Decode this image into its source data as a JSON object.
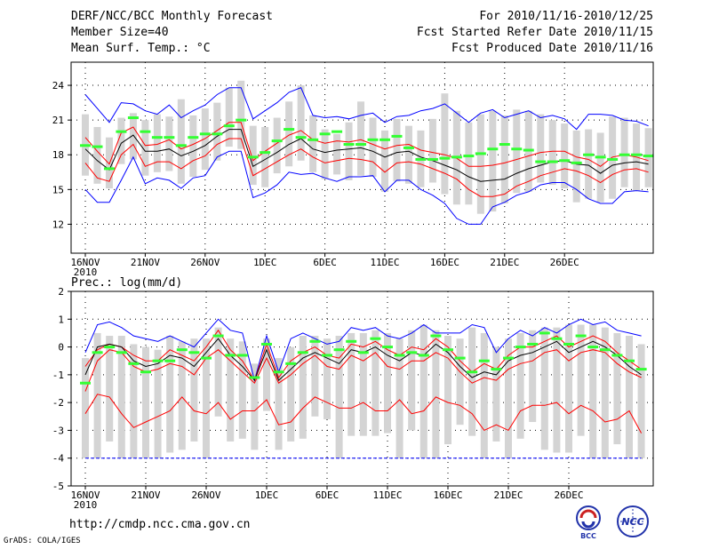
{
  "header": {
    "title": "DERF/NCC/BCC Monthly Forecast",
    "member_size": "Member Size=40",
    "variable": "Mean Surf. Temp.: °C",
    "period": "For 2010/11/16-2010/12/25",
    "fcst_started": "Fcst Started Refer Date 2010/11/15",
    "fcst_produced": "Fcst Produced Date 2010/11/16"
  },
  "footer": {
    "url": "http://cmdp.ncc.cma.gov.cn",
    "grads": "GrADS: COLA/IGES",
    "logo_bcc": "BCC",
    "logo_ncc": "NCC"
  },
  "colors": {
    "mean": "#000000",
    "spread": "#ff0000",
    "extreme": "#0000ff",
    "obs_bar": "#33ff33",
    "box": "#d4d4d4"
  },
  "chart_data": [
    {
      "type": "line",
      "title": "Mean Surf. Temp.: °C",
      "xlabel": "",
      "ylabel": "",
      "ylim": [
        9.5,
        26
      ],
      "yticks": [
        12,
        15,
        18,
        21,
        24
      ],
      "x_tick_labels": [
        "16NOV",
        "21NOV",
        "26NOV",
        "1DEC",
        "6DEC",
        "11DEC",
        "16DEC",
        "21DEC",
        "26DEC"
      ],
      "x_year_label": "2010",
      "grid": true,
      "series": [
        {
          "name": "ensemble max",
          "color_key": "extreme",
          "values": [
            23.2,
            22.0,
            20.8,
            22.5,
            22.4,
            21.8,
            21.5,
            22.3,
            21.2,
            21.8,
            22.3,
            23.2,
            23.8,
            23.8,
            21.1,
            21.8,
            22.5,
            23.4,
            23.8,
            21.4,
            21.2,
            21.3,
            21.1,
            21.4,
            21.6,
            20.8,
            21.3,
            21.4,
            21.8,
            22.0,
            22.4,
            21.6,
            20.8,
            21.6,
            21.9,
            21.2,
            21.5,
            21.8,
            21.2,
            21.4,
            21.1,
            20.2,
            21.5,
            21.5,
            21.4,
            21.0,
            20.9,
            20.5
          ]
        },
        {
          "name": "mean + sd",
          "color_key": "spread",
          "values": [
            19.5,
            18.3,
            17.2,
            19.9,
            20.4,
            18.8,
            18.9,
            19.3,
            18.5,
            18.9,
            19.4,
            20.1,
            20.8,
            20.8,
            17.5,
            18.3,
            19.0,
            19.7,
            20.1,
            19.3,
            19.0,
            19.2,
            19.1,
            19.3,
            18.9,
            18.5,
            18.8,
            18.9,
            18.4,
            18.2,
            18.0,
            17.7,
            17.0,
            17.0,
            17.1,
            17.3,
            17.6,
            17.9,
            18.2,
            18.3,
            18.3,
            17.8,
            17.6,
            17.0,
            17.8,
            18.0,
            17.8,
            17.5
          ]
        },
        {
          "name": "ensemble mean",
          "color_key": "mean",
          "values": [
            18.5,
            17.5,
            16.7,
            19.0,
            19.7,
            18.3,
            18.3,
            18.5,
            17.9,
            18.3,
            18.8,
            19.6,
            20.2,
            20.2,
            17.0,
            17.6,
            18.2,
            18.9,
            19.4,
            18.5,
            18.2,
            18.4,
            18.5,
            18.6,
            18.3,
            17.8,
            18.2,
            18.3,
            17.8,
            17.5,
            17.1,
            16.7,
            16.1,
            15.7,
            15.8,
            15.9,
            16.4,
            16.8,
            17.1,
            17.4,
            17.5,
            17.2,
            17.1,
            16.4,
            17.1,
            17.3,
            17.4,
            17.2
          ]
        },
        {
          "name": "mean - sd",
          "color_key": "spread",
          "values": [
            17.3,
            16.0,
            15.7,
            18.0,
            18.9,
            17.0,
            17.4,
            17.4,
            16.8,
            17.5,
            17.9,
            18.9,
            19.4,
            19.4,
            16.2,
            16.8,
            17.4,
            18.0,
            18.5,
            17.8,
            17.3,
            17.5,
            17.7,
            17.6,
            17.4,
            16.5,
            17.3,
            17.4,
            17.2,
            16.8,
            16.4,
            15.9,
            15.0,
            14.4,
            14.4,
            14.6,
            15.3,
            15.7,
            16.2,
            16.5,
            16.8,
            16.6,
            16.2,
            15.6,
            16.3,
            16.7,
            16.8,
            16.5
          ]
        },
        {
          "name": "ensemble min",
          "color_key": "extreme",
          "values": [
            15.0,
            13.9,
            13.9,
            15.8,
            17.8,
            15.5,
            16.0,
            15.8,
            15.1,
            16.0,
            16.2,
            17.8,
            18.3,
            18.3,
            14.3,
            14.7,
            15.4,
            16.5,
            16.3,
            16.4,
            16.0,
            15.7,
            16.1,
            16.1,
            16.2,
            14.8,
            15.8,
            15.8,
            15.0,
            14.5,
            13.8,
            12.5,
            12.0,
            12.0,
            13.5,
            13.9,
            14.5,
            14.8,
            15.4,
            15.6,
            15.6,
            15.0,
            14.2,
            13.8,
            13.8,
            14.8,
            14.9,
            14.8
          ]
        },
        {
          "name": "box top",
          "color_key": "box",
          "values": [
            21.5,
            20.4,
            19.5,
            21.2,
            21.6,
            21.0,
            21.5,
            21.3,
            22.8,
            21.4,
            22.0,
            22.5,
            23.8,
            24.4,
            20.5,
            20.4,
            21.2,
            22.6,
            24.0,
            21.4,
            20.2,
            19.8,
            20.8,
            22.6,
            21.2,
            20.1,
            21.1,
            20.5,
            20.1,
            21.1,
            23.3,
            21.8,
            20.8,
            21.5,
            21.8,
            21.4,
            21.9,
            21.8,
            21.5,
            21.0,
            20.7,
            20.1,
            20.2,
            19.9,
            21.3,
            21.2,
            20.7,
            20.3
          ]
        },
        {
          "name": "box bottom",
          "color_key": "box",
          "values": [
            16.2,
            15.5,
            15.1,
            17.2,
            17.6,
            16.2,
            16.5,
            16.6,
            15.5,
            16.1,
            16.7,
            17.5,
            18.7,
            18.5,
            15.4,
            15.2,
            16.4,
            17.0,
            17.5,
            16.5,
            15.9,
            16.3,
            15.8,
            16.2,
            16.1,
            14.8,
            15.7,
            15.5,
            15.2,
            15.6,
            14.6,
            13.7,
            13.7,
            12.9,
            13.1,
            13.8,
            14.7,
            14.8,
            15.6,
            15.4,
            15.1,
            13.9,
            14.2,
            13.9,
            14.2,
            15.2,
            14.9,
            15.2
          ]
        },
        {
          "name": "observed",
          "color_key": "obs_bar",
          "values": [
            18.8,
            18.7,
            16.8,
            20.0,
            21.2,
            20.0,
            19.5,
            19.5,
            18.8,
            19.5,
            19.8,
            19.8,
            20.5,
            21.0,
            17.8,
            18.2,
            19.2,
            20.2,
            19.5,
            19.3,
            19.8,
            20.0,
            18.9,
            18.9,
            19.3,
            19.3,
            19.6,
            18.6,
            17.6,
            17.6,
            17.7,
            17.8,
            17.9,
            18.1,
            18.5,
            18.9,
            18.5,
            18.4,
            17.4,
            17.4,
            17.5,
            17.3,
            18.0,
            17.8,
            17.6,
            18.0,
            18.0,
            17.9
          ]
        }
      ]
    },
    {
      "type": "line",
      "title": "Prec.: log(mm/d)",
      "xlabel": "",
      "ylabel": "",
      "ylim": [
        -5,
        2
      ],
      "yticks": [
        -5,
        -4,
        -3,
        -2,
        -1,
        0,
        1,
        2
      ],
      "x_tick_labels": [
        "16NOV",
        "21NOV",
        "26NOV",
        "1DEC",
        "6DEC",
        "11DEC",
        "16DEC",
        "21DEC",
        "26DEC"
      ],
      "x_year_label": "2010",
      "grid": true,
      "series": [
        {
          "name": "ensemble max",
          "color_key": "extreme",
          "values": [
            -0.2,
            0.8,
            0.9,
            0.7,
            0.4,
            0.3,
            0.2,
            0.4,
            0.2,
            0.0,
            0.5,
            1.0,
            0.6,
            0.5,
            -1.2,
            0.4,
            -0.9,
            0.3,
            0.5,
            0.3,
            0.1,
            0.2,
            0.7,
            0.6,
            0.7,
            0.4,
            0.3,
            0.5,
            0.8,
            0.5,
            0.5,
            0.5,
            0.8,
            0.7,
            -0.2,
            0.3,
            0.6,
            0.4,
            0.7,
            0.5,
            0.8,
            1.0,
            0.8,
            0.9,
            0.6,
            0.5,
            0.4
          ]
        },
        {
          "name": "mean + sd",
          "color_key": "spread",
          "values": [
            -0.7,
            -0.1,
            0.1,
            0.0,
            -0.3,
            -0.5,
            -0.5,
            -0.1,
            -0.3,
            -0.5,
            0.0,
            0.6,
            -0.1,
            -0.5,
            -1.2,
            0.1,
            -1.1,
            -0.5,
            -0.2,
            0.0,
            -0.3,
            -0.4,
            0.1,
            0.0,
            0.2,
            -0.1,
            -0.3,
            0.0,
            -0.1,
            0.3,
            0.0,
            -0.5,
            -0.9,
            -0.6,
            -0.8,
            -0.3,
            0.0,
            0.0,
            0.2,
            0.4,
            0.0,
            0.2,
            0.4,
            0.2,
            -0.2,
            -0.5,
            -0.8
          ]
        },
        {
          "name": "ensemble mean",
          "color_key": "mean",
          "values": [
            -1.0,
            0.0,
            0.1,
            0.0,
            -0.5,
            -0.7,
            -0.6,
            -0.3,
            -0.4,
            -0.7,
            -0.2,
            0.3,
            -0.3,
            -0.7,
            -1.2,
            -0.1,
            -1.2,
            -0.8,
            -0.4,
            -0.2,
            -0.4,
            -0.6,
            -0.1,
            -0.2,
            0.0,
            -0.3,
            -0.5,
            -0.2,
            -0.3,
            0.1,
            -0.2,
            -0.7,
            -1.1,
            -0.9,
            -1.0,
            -0.5,
            -0.3,
            -0.2,
            0.0,
            0.2,
            -0.2,
            0.0,
            0.2,
            0.0,
            -0.3,
            -0.7,
            -1.0
          ]
        },
        {
          "name": "mean - sd",
          "color_key": "spread",
          "values": [
            -1.6,
            -0.5,
            -0.1,
            -0.2,
            -0.7,
            -0.9,
            -0.8,
            -0.6,
            -0.7,
            -1.0,
            -0.4,
            -0.1,
            -0.5,
            -0.9,
            -1.3,
            -0.4,
            -1.3,
            -1.0,
            -0.6,
            -0.3,
            -0.7,
            -0.8,
            -0.3,
            -0.5,
            -0.2,
            -0.7,
            -0.8,
            -0.5,
            -0.5,
            -0.2,
            -0.4,
            -0.9,
            -1.3,
            -1.1,
            -1.2,
            -0.8,
            -0.6,
            -0.5,
            -0.2,
            -0.1,
            -0.5,
            -0.2,
            -0.1,
            -0.2,
            -0.6,
            -0.9,
            -1.1
          ]
        },
        {
          "name": "ensemble min",
          "color_key": "spread",
          "values": [
            -2.4,
            -1.7,
            -1.8,
            -2.4,
            -2.9,
            -2.7,
            -2.5,
            -2.3,
            -1.8,
            -2.3,
            -2.4,
            -2.0,
            -2.6,
            -2.3,
            -2.3,
            -1.9,
            -2.8,
            -2.7,
            -2.2,
            -1.8,
            -2.0,
            -2.2,
            -2.2,
            -2.0,
            -2.3,
            -2.3,
            -1.9,
            -2.4,
            -2.3,
            -1.8,
            -2.0,
            -2.1,
            -2.4,
            -3.0,
            -2.8,
            -3.0,
            -2.3,
            -2.1,
            -2.1,
            -2.0,
            -2.4,
            -2.1,
            -2.3,
            -2.7,
            -2.6,
            -2.3,
            -3.1
          ]
        },
        {
          "name": "lower bound",
          "color_key": "extreme",
          "values": [
            -4,
            -4,
            -4,
            -4,
            -4,
            -4,
            -4,
            -4,
            -4,
            -4,
            -4,
            -4,
            -4,
            -4,
            -4,
            -4,
            -4,
            -4,
            -4,
            -4,
            -4,
            -4,
            -4,
            -4,
            -4,
            -4,
            -4,
            -4,
            -4,
            -4,
            -4,
            -4,
            -4,
            -4,
            -4,
            -4,
            -4,
            -4,
            -4,
            -4,
            -4,
            -4,
            -4,
            -4,
            -4,
            -4,
            -4
          ]
        },
        {
          "name": "box top",
          "color_key": "box",
          "values": [
            -0.4,
            0.5,
            0.4,
            0.4,
            0.1,
            0.0,
            -0.1,
            0.4,
            0.2,
            0.3,
            0.3,
            0.7,
            0.3,
            0.2,
            -0.6,
            0.3,
            -0.4,
            0.0,
            0.4,
            0.4,
            0.3,
            0.4,
            0.5,
            0.5,
            0.6,
            0.5,
            0.3,
            0.6,
            0.8,
            0.6,
            0.4,
            0.3,
            0.7,
            0.5,
            0.0,
            0.3,
            0.5,
            0.6,
            0.7,
            0.7,
            0.8,
            0.8,
            0.8,
            0.7,
            0.5,
            0.4,
            0.1
          ]
        },
        {
          "name": "box bottom",
          "color_key": "box",
          "values": [
            -4.0,
            -4.0,
            -3.4,
            -4.0,
            -4.0,
            -4.0,
            -4.0,
            -3.8,
            -3.7,
            -3.4,
            -4.0,
            -2.5,
            -3.4,
            -3.3,
            -3.7,
            -2.3,
            -3.7,
            -3.4,
            -3.3,
            -2.5,
            -2.6,
            -4.0,
            -3.2,
            -3.2,
            -3.2,
            -3.1,
            -4.0,
            -3.0,
            -4.0,
            -4.0,
            -3.5,
            -2.8,
            -3.2,
            -4.0,
            -3.4,
            -4.0,
            -3.3,
            -2.7,
            -3.7,
            -3.8,
            -3.8,
            -3.2,
            -4.0,
            -4.0,
            -3.5,
            -4.0,
            -4.0
          ]
        },
        {
          "name": "observed",
          "color_key": "obs_bar",
          "values": [
            -1.3,
            -0.2,
            0.0,
            -0.2,
            -0.6,
            -0.9,
            -0.5,
            -0.5,
            -0.1,
            -0.2,
            -0.4,
            0.4,
            -0.3,
            -0.3,
            -1.1,
            0.1,
            -0.9,
            -0.6,
            -0.2,
            0.2,
            -0.3,
            -0.1,
            0.2,
            -0.2,
            0.3,
            0.0,
            -0.3,
            -0.2,
            -0.3,
            0.4,
            -0.1,
            -0.4,
            -0.9,
            -0.5,
            -0.8,
            -0.4,
            0.0,
            0.1,
            0.5,
            0.3,
            0.1,
            0.4,
            0.0,
            -0.1,
            -0.3,
            -0.5,
            -0.8
          ]
        }
      ]
    }
  ]
}
